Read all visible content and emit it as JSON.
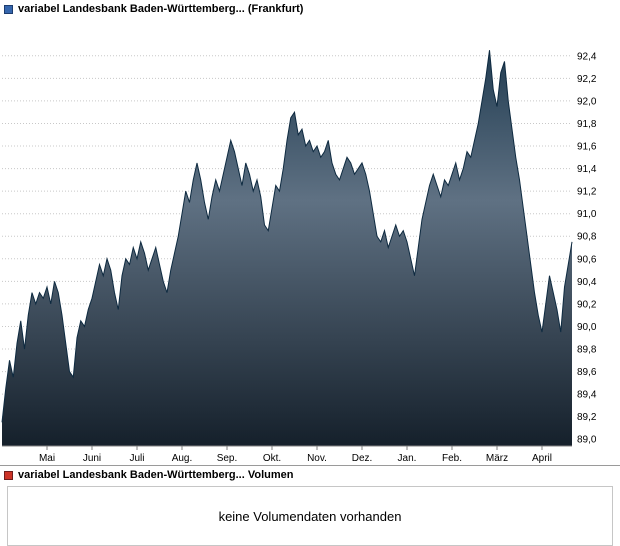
{
  "header": {
    "legend_color": "#3566ad",
    "legend_border": "#1d3c6e",
    "title": "variabel Landesbank Baden-Württemberg... (Frankfurt)"
  },
  "volume": {
    "legend_color": "#cc3327",
    "legend_border": "#6e1d1d",
    "title": "variabel Landesbank Baden-Württemberg... Volumen",
    "message": "keine Volumendaten vorhanden"
  },
  "chart_data": {
    "type": "area",
    "title": "variabel Landesbank Baden-Württemberg... (Frankfurt)",
    "xlabel": "",
    "ylabel": "",
    "legend_position": "top-left",
    "grid": "horizontal-dotted",
    "x_tick_labels": [
      "Mai",
      "Juni",
      "Juli",
      "Aug.",
      "Sep.",
      "Okt.",
      "Nov.",
      "Dez.",
      "Jan.",
      "Feb.",
      "März",
      "April"
    ],
    "y_ticks": [
      92.4,
      92.2,
      92.0,
      91.8,
      91.6,
      91.4,
      91.2,
      91.0,
      90.8,
      90.6,
      90.4,
      90.2,
      90.0,
      89.8,
      89.6,
      89.4,
      89.2,
      89.0
    ],
    "ylim": [
      88.94,
      92.62
    ],
    "decimal_separator": ",",
    "lead_points": 12,
    "points_per_month": 12,
    "line_color": "#0e2a40",
    "area_gradient": [
      "#223d52",
      "#5f7183",
      "#15202b"
    ],
    "grid_color": "#c8c8c8",
    "axis_color": "#808080",
    "values": [
      89.15,
      89.45,
      89.7,
      89.55,
      89.85,
      90.05,
      89.8,
      90.1,
      90.3,
      90.2,
      90.3,
      90.25,
      90.35,
      90.2,
      90.4,
      90.3,
      90.1,
      89.85,
      89.6,
      89.55,
      89.9,
      90.05,
      90.0,
      90.15,
      90.25,
      90.4,
      90.55,
      90.45,
      90.6,
      90.5,
      90.3,
      90.15,
      90.45,
      90.6,
      90.55,
      90.7,
      90.6,
      90.75,
      90.65,
      90.5,
      90.6,
      90.7,
      90.55,
      90.4,
      90.3,
      90.5,
      90.65,
      90.8,
      91.0,
      91.2,
      91.1,
      91.3,
      91.45,
      91.3,
      91.1,
      90.95,
      91.15,
      91.3,
      91.2,
      91.35,
      91.5,
      91.65,
      91.55,
      91.4,
      91.25,
      91.45,
      91.35,
      91.2,
      91.3,
      91.15,
      90.9,
      90.85,
      91.05,
      91.25,
      91.2,
      91.4,
      91.65,
      91.85,
      91.9,
      91.7,
      91.75,
      91.6,
      91.65,
      91.55,
      91.6,
      91.5,
      91.55,
      91.65,
      91.45,
      91.35,
      91.3,
      91.4,
      91.5,
      91.45,
      91.35,
      91.4,
      91.45,
      91.35,
      91.2,
      91.0,
      90.8,
      90.75,
      90.85,
      90.7,
      90.8,
      90.9,
      90.8,
      90.85,
      90.75,
      90.6,
      90.45,
      90.7,
      90.95,
      91.1,
      91.25,
      91.35,
      91.25,
      91.15,
      91.3,
      91.25,
      91.35,
      91.45,
      91.3,
      91.4,
      91.55,
      91.5,
      91.65,
      91.8,
      92.0,
      92.2,
      92.45,
      92.1,
      91.95,
      92.25,
      92.35,
      92.0,
      91.75,
      91.5,
      91.3,
      91.05,
      90.8,
      90.55,
      90.3,
      90.1,
      89.95,
      90.2,
      90.45,
      90.3,
      90.15,
      89.95,
      90.35,
      90.55,
      90.75
    ]
  }
}
